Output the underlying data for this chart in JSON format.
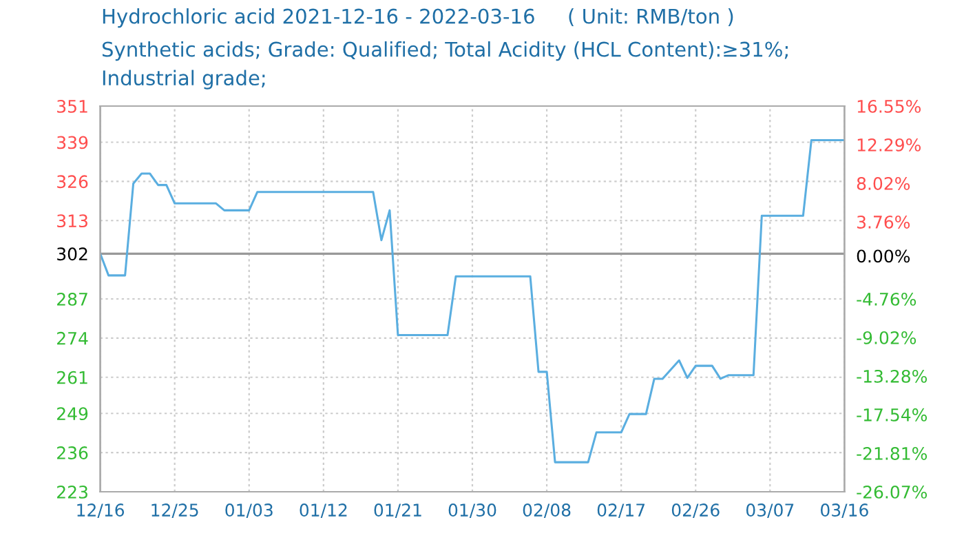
{
  "chart_data": {
    "type": "line",
    "title": "Hydrochloric acid 2021-12-16 - 2022-03-16     ( Unit: RMB/ton )",
    "subtitle": "Synthetic acids; Grade: Qualified; Total Acidity (HCL Content):≥31%;\nIndustrial grade;",
    "x": [
      "2021-12-16",
      "2021-12-17",
      "2021-12-19",
      "2021-12-20",
      "2021-12-21",
      "2021-12-22",
      "2021-12-23",
      "2021-12-24",
      "2021-12-25",
      "2021-12-30",
      "2021-12-31",
      "2022-01-03",
      "2022-01-04",
      "2022-01-18",
      "2022-01-19",
      "2022-01-20",
      "2022-01-21",
      "2022-01-27",
      "2022-01-28",
      "2022-02-06",
      "2022-02-07",
      "2022-02-08",
      "2022-02-09",
      "2022-02-13",
      "2022-02-14",
      "2022-02-17",
      "2022-02-18",
      "2022-02-20",
      "2022-02-21",
      "2022-02-22",
      "2022-02-24",
      "2022-02-25",
      "2022-02-26",
      "2022-02-28",
      "2022-03-01",
      "2022-03-02",
      "2022-03-05",
      "2022-03-06",
      "2022-03-11",
      "2022-03-12",
      "2022-03-16"
    ],
    "series": [
      {
        "color": "#5aaee0",
        "values": [
          302,
          294.8,
          294.8,
          325.3,
          328.6,
          328.6,
          324.8,
          324.8,
          318.7,
          318.7,
          316.4,
          316.4,
          322.5,
          322.5,
          306.5,
          316.4,
          275.0,
          275.0,
          294.5,
          294.5,
          262.8,
          262.8,
          232.8,
          232.8,
          242.7,
          242.7,
          248.8,
          248.8,
          260.5,
          260.5,
          266.6,
          260.8,
          264.8,
          264.8,
          260.5,
          261.7,
          261.7,
          314.6,
          314.6,
          339.7,
          339.7
        ]
      }
    ],
    "xlim": [
      "2021-12-16",
      "2022-03-16"
    ],
    "xticks": [
      {
        "value": "2021-12-16",
        "label": "12/16"
      },
      {
        "value": "2021-12-25",
        "label": "12/25"
      },
      {
        "value": "2022-01-03",
        "label": "01/03"
      },
      {
        "value": "2022-01-12",
        "label": "01/12"
      },
      {
        "value": "2022-01-21",
        "label": "01/21"
      },
      {
        "value": "2022-01-30",
        "label": "01/30"
      },
      {
        "value": "2022-02-08",
        "label": "02/08"
      },
      {
        "value": "2022-02-17",
        "label": "02/17"
      },
      {
        "value": "2022-02-26",
        "label": "02/26"
      },
      {
        "value": "2022-03-07",
        "label": "03/07"
      },
      {
        "value": "2022-03-16",
        "label": "03/16"
      }
    ],
    "ylim": [
      223,
      351
    ],
    "yticks": [
      223,
      236,
      249,
      261,
      274,
      287,
      302,
      313,
      326,
      339,
      351
    ],
    "y2lim": [
      -26.07,
      16.55
    ],
    "y2ticks": [
      {
        "value": -26.07,
        "label": "-26.07%"
      },
      {
        "value": -21.81,
        "label": "-21.81%"
      },
      {
        "value": -17.54,
        "label": "-17.54%"
      },
      {
        "value": -13.28,
        "label": "-13.28%"
      },
      {
        "value": -9.02,
        "label": "-9.02%"
      },
      {
        "value": -4.76,
        "label": "-4.76%"
      },
      {
        "value": 0,
        "label": "0.00%"
      },
      {
        "value": 3.76,
        "label": "3.76%"
      },
      {
        "value": 8.02,
        "label": "8.02%"
      },
      {
        "value": 12.29,
        "label": "12.29%"
      },
      {
        "value": 16.55,
        "label": "16.55%"
      }
    ],
    "ref_lines": [
      {
        "axis": "y",
        "value": 302,
        "label": null,
        "color": "#999999"
      }
    ],
    "grid": true,
    "marker": "none",
    "line_style": "solid"
  }
}
